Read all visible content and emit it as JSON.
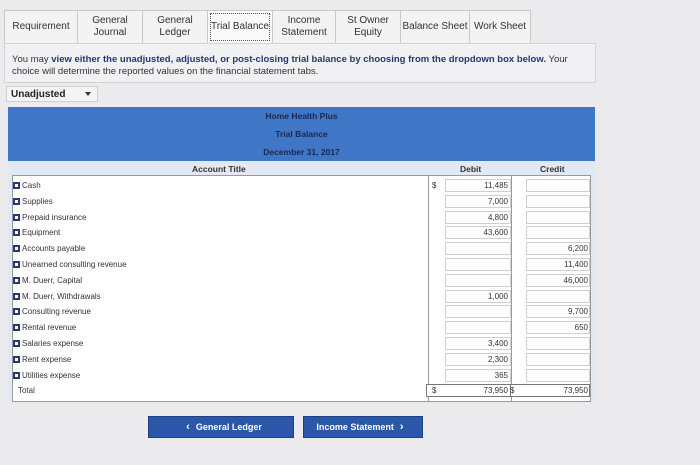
{
  "tabs": [
    {
      "label": "Requirement",
      "active": false
    },
    {
      "label": "General\nJournal",
      "active": false
    },
    {
      "label": "General\nLedger",
      "active": false
    },
    {
      "label": "Trial Balance",
      "active": true
    },
    {
      "label": "Income\nStatement",
      "active": false
    },
    {
      "label": "St Owner\nEquity",
      "active": false
    },
    {
      "label": "Balance Sheet",
      "active": false
    },
    {
      "label": "Work Sheet",
      "active": false
    }
  ],
  "instructions": {
    "prefix": "You may ",
    "bold": "view either the unadjusted, adjusted, or post-closing trial balance by choosing from the dropdown box below.",
    "suffix": " Your choice will determine the reported values on the financial statement tabs."
  },
  "dropdown": {
    "selected": "Unadjusted"
  },
  "header": {
    "company": "Home Health Plus",
    "report": "Trial Balance",
    "date": "December 31, 2017"
  },
  "columns": {
    "account": "Account Title",
    "debit": "Debit",
    "credit": "Credit"
  },
  "rows": [
    {
      "account": "Cash",
      "debit": "11,485",
      "credit": "",
      "dollar": "$"
    },
    {
      "account": "Supplies",
      "debit": "7,000",
      "credit": ""
    },
    {
      "account": "Prepaid insurance",
      "debit": "4,800",
      "credit": ""
    },
    {
      "account": "Equipment",
      "debit": "43,600",
      "credit": ""
    },
    {
      "account": "Accounts payable",
      "debit": "",
      "credit": "6,200"
    },
    {
      "account": "Unearned consulting revenue",
      "debit": "",
      "credit": "11,400"
    },
    {
      "account": "M. Duerr, Capital",
      "debit": "",
      "credit": "46,000"
    },
    {
      "account": "M. Duerr, Withdrawals",
      "debit": "1,000",
      "credit": ""
    },
    {
      "account": "Consulting revenue",
      "debit": "",
      "credit": "9,700"
    },
    {
      "account": "Rental revenue",
      "debit": "",
      "credit": "650"
    },
    {
      "account": "Salaries expense",
      "debit": "3,400",
      "credit": ""
    },
    {
      "account": "Rent expense",
      "debit": "2,300",
      "credit": ""
    },
    {
      "account": "Utilities expense",
      "debit": "365",
      "credit": ""
    }
  ],
  "total": {
    "label": "Total",
    "debit_symbol": "$",
    "debit": "73,950",
    "credit_symbol": "$",
    "credit": "73,950"
  },
  "buttons": {
    "prev": "General Ledger",
    "next": "Income Statement"
  }
}
